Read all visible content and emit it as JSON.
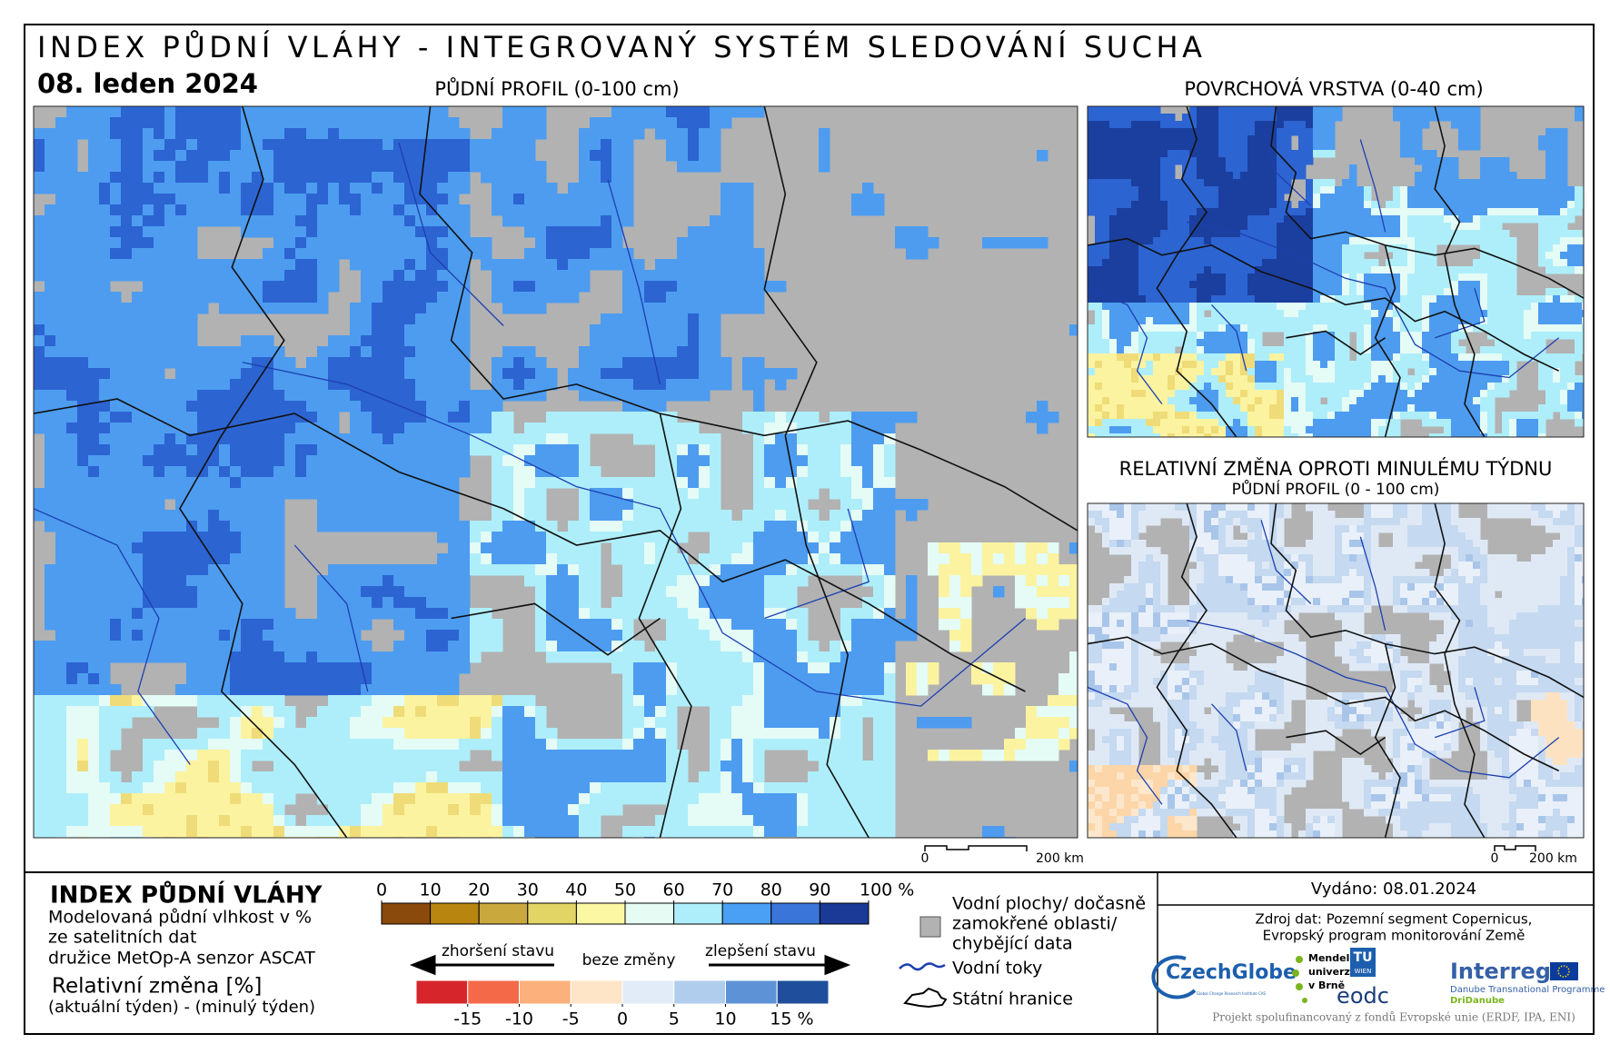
{
  "header": {
    "title": "INDEX PŮDNÍ VLÁHY - INTEGROVANÝ SYSTÉM SLEDOVÁNÍ SUCHA",
    "date": "08. leden 2024"
  },
  "maps": [
    {
      "label": "PŮDNÍ PROFIL (0-100 cm)"
    },
    {
      "label": "POVRCHOVÁ VRSTVA (0-40 cm)"
    },
    {
      "label": "RELATIVNÍ ZMĚNA OPROTI MINULÉMU TÝDNU",
      "sublabel": "PŮDNÍ PROFIL (0 - 100 cm)"
    }
  ],
  "scale_bars": [
    {
      "start": "0",
      "end": "200 km"
    },
    {
      "start": "0",
      "end": "200 km"
    }
  ],
  "legend": {
    "title": "INDEX PŮDNÍ VLÁHY",
    "description": [
      "Modelovaná půdní vlhkost v %",
      "ze satelitních dat",
      "družice MetOp-A senzor ASCAT"
    ],
    "change_title": "Relativní změna [%]",
    "change_description": "(aktuální týden) - (minulý týden)",
    "index_scale": {
      "ticks": [
        0,
        10,
        20,
        30,
        40,
        50,
        60,
        70,
        80,
        90,
        {
          "value": 100,
          "label": "100 %"
        }
      ],
      "colors": [
        "#8a4a0c",
        "#b8860f",
        "#c9a83e",
        "#e2d566",
        "#fbf7a2",
        "#e6fbf4",
        "#aeeefa",
        "#4aa0f4",
        "#3a76da",
        "#1b3a98"
      ]
    },
    "change_scale": {
      "ticks": [
        -15,
        -10,
        -5,
        0,
        5,
        10,
        {
          "value": 15,
          "label": "15 %"
        }
      ],
      "colors": [
        "#d7262b",
        "#f46a48",
        "#fcb07c",
        "#fee5c8",
        "#e1ecf8",
        "#b1cdee",
        "#5d93d6",
        "#1f4f9c"
      ]
    },
    "worse": "zhoršení stavu",
    "no_change": "beze změny",
    "better": "zlepšení stavu",
    "water_bodies": [
      "Vodní plochy/ dočasně",
      "zamokřené oblasti/",
      "chybějící data"
    ],
    "rivers": "Vodní toky",
    "borders": "Státní hranice"
  },
  "source": {
    "issued": "Vydáno: 08.01.2024",
    "lines": [
      "Zdroj dat: Pozemní segment Copernicus,",
      "Evropský program monitorování Země"
    ],
    "czechglobe": "CzechGlobe",
    "czechglobe_sub": "Global Change Research Institute CAS",
    "mendel": [
      "Mendelova",
      "univerzita",
      "v Brně"
    ],
    "tu": [
      "TU",
      "WIEN"
    ],
    "eodc": "eodc",
    "interreg": "Interreg",
    "interreg_sub": [
      "Danube Transnational Programme",
      "DriDanube"
    ],
    "footer": "Projekt spolufinancovaný z fondů Evropské unie (ERDF, IPA, ENI)"
  }
}
